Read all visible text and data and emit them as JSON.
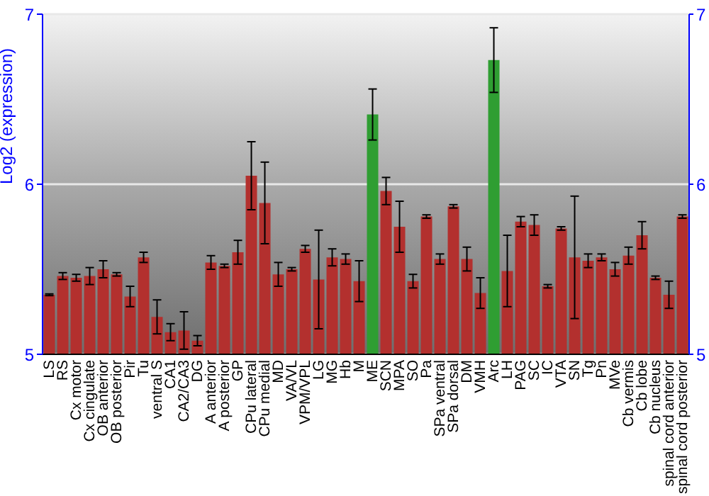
{
  "chart_data": {
    "type": "bar",
    "ylabel": "Log2 (expression)",
    "categories": [
      "LS",
      "RS",
      "Cx motor",
      "Cx cingulate",
      "OB anterior",
      "OB posterior",
      "Pir",
      "Tu",
      "ventral S",
      "CA1",
      "CA2/CA3",
      "DG",
      "A anterior",
      "A posterior",
      "GP",
      "CPu lateral",
      "CPu medial",
      "MD",
      "VA/VL",
      "VPM/VPL",
      "LG",
      "MG",
      "Hb",
      "M",
      "ME",
      "SCN",
      "MPA",
      "SO",
      "Pa",
      "SPa ventral",
      "SPa dorsal",
      "DM",
      "VMH",
      "Arc",
      "LH",
      "PAG",
      "SC",
      "IC",
      "VTA",
      "SN",
      "Tg",
      "Pn",
      "MVe",
      "Cb vermis",
      "Cb lobe",
      "Cb nucleus",
      "spinal cord anterior",
      "spinal cord posterior"
    ],
    "values": [
      5.35,
      5.46,
      5.45,
      5.46,
      5.5,
      5.47,
      5.34,
      5.57,
      5.22,
      5.13,
      5.14,
      5.08,
      5.54,
      5.52,
      5.6,
      6.05,
      5.89,
      5.47,
      5.5,
      5.62,
      5.44,
      5.57,
      5.56,
      5.43,
      6.41,
      5.96,
      5.75,
      5.43,
      5.81,
      5.56,
      5.87,
      5.56,
      5.36,
      6.73,
      5.49,
      5.78,
      5.76,
      5.4,
      5.74,
      5.57,
      5.55,
      5.57,
      5.5,
      5.58,
      5.7,
      5.45,
      5.35,
      5.81
    ],
    "errors": [
      0.005,
      0.02,
      0.02,
      0.05,
      0.05,
      0.01,
      0.06,
      0.03,
      0.1,
      0.05,
      0.11,
      0.03,
      0.04,
      0.01,
      0.07,
      0.2,
      0.24,
      0.07,
      0.01,
      0.02,
      0.29,
      0.05,
      0.03,
      0.12,
      0.15,
      0.08,
      0.15,
      0.04,
      0.01,
      0.03,
      0.01,
      0.07,
      0.09,
      0.19,
      0.21,
      0.03,
      0.06,
      0.01,
      0.01,
      0.36,
      0.04,
      0.02,
      0.04,
      0.05,
      0.08,
      0.01,
      0.08,
      0.01
    ],
    "colors": [
      "#b3302e",
      "#b3302e",
      "#b3302e",
      "#b3302e",
      "#b3302e",
      "#b3302e",
      "#b3302e",
      "#b3302e",
      "#b3302e",
      "#b3302e",
      "#b3302e",
      "#b3302e",
      "#b3302e",
      "#b3302e",
      "#b3302e",
      "#b3302e",
      "#b3302e",
      "#b3302e",
      "#b3302e",
      "#b3302e",
      "#b3302e",
      "#b3302e",
      "#b3302e",
      "#b3302e",
      "#2f9e32",
      "#b3302e",
      "#b3302e",
      "#b3302e",
      "#b3302e",
      "#b3302e",
      "#b3302e",
      "#b3302e",
      "#b3302e",
      "#2f9e32",
      "#b3302e",
      "#b3302e",
      "#b3302e",
      "#b3302e",
      "#b3302e",
      "#b3302e",
      "#b3302e",
      "#b3302e",
      "#b3302e",
      "#b3302e",
      "#b3302e",
      "#b3302e",
      "#b3302e",
      "#b3302e"
    ],
    "ylim": [
      5,
      7
    ],
    "yticks": [
      5,
      6,
      7
    ],
    "y2lim": [
      5,
      7
    ],
    "y2ticks": [
      5,
      6,
      7
    ],
    "grid": "y",
    "legend": false
  }
}
